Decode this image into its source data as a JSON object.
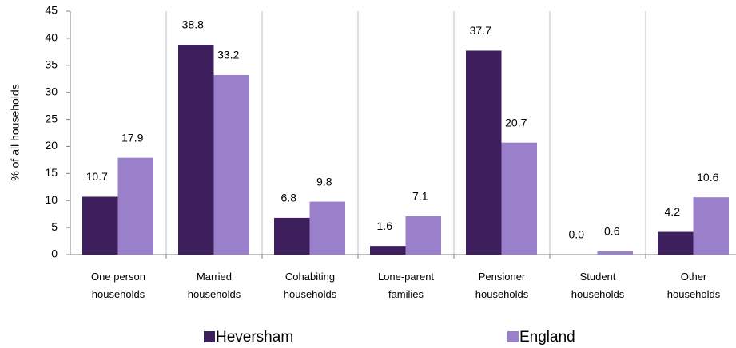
{
  "chart_data": {
    "type": "bar",
    "ylabel": "% of all households",
    "categories": [
      "One person households",
      "Married households",
      "Cohabiting households",
      "Lone-parent families",
      "Pensioner households",
      "Student households",
      "Other households"
    ],
    "series": [
      {
        "name": "Heversham",
        "color": "#3d1f5e",
        "values": [
          10.7,
          38.8,
          6.8,
          1.6,
          37.7,
          0,
          4.2
        ],
        "value_labels": [
          "10.7",
          "38.8",
          "6.8",
          "1.6",
          "37.7",
          "0.0",
          "4.2"
        ]
      },
      {
        "name": "England",
        "color": "#9a7fcb",
        "values": [
          17.9,
          33.2,
          9.8,
          7.1,
          20.7,
          0.6,
          10.6
        ],
        "value_labels": [
          "17.9",
          "33.2",
          "9.8",
          "7.1",
          "20.7",
          "0.6",
          "10.6"
        ]
      }
    ],
    "ylim": [
      0,
      45
    ],
    "yticks": [
      0,
      5,
      10,
      15,
      20,
      25,
      30,
      35,
      40,
      45
    ],
    "legend": "bottom"
  }
}
